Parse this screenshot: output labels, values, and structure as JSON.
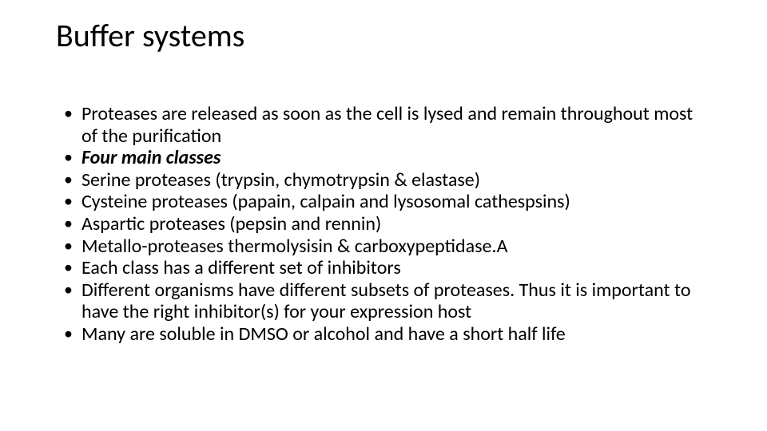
{
  "title": "Buffer systems",
  "bullets": [
    {
      "text": " Proteases are released as soon as the cell is lysed and remain throughout most of the purification",
      "bold_italic": false
    },
    {
      "text": " Four main classes",
      "bold_italic": true
    },
    {
      "text": " Serine proteases (trypsin, chymotrypsin & elastase)",
      "bold_italic": false
    },
    {
      "text": "Cysteine proteases (papain, calpain and lysosomal cathespsins)",
      "bold_italic": false
    },
    {
      "text": " Aspartic proteases (pepsin and rennin)",
      "bold_italic": false
    },
    {
      "text": " Metallo-proteases thermolysisin & carboxypeptidase.A",
      "bold_italic": false
    },
    {
      "text": " Each class has a different set of inhibitors",
      "bold_italic": false
    },
    {
      "text": " Different organisms have different subsets of proteases. Thus it is important to have the right inhibitor(s) for your expression host",
      "bold_italic": false
    },
    {
      "text": " Many are soluble in DMSO or alcohol and have a short half life",
      "bold_italic": false
    }
  ],
  "style": {
    "background_color": "#ffffff",
    "text_color": "#000000",
    "title_fontsize": 40,
    "body_fontsize": 24,
    "font_family": "Calibri"
  }
}
